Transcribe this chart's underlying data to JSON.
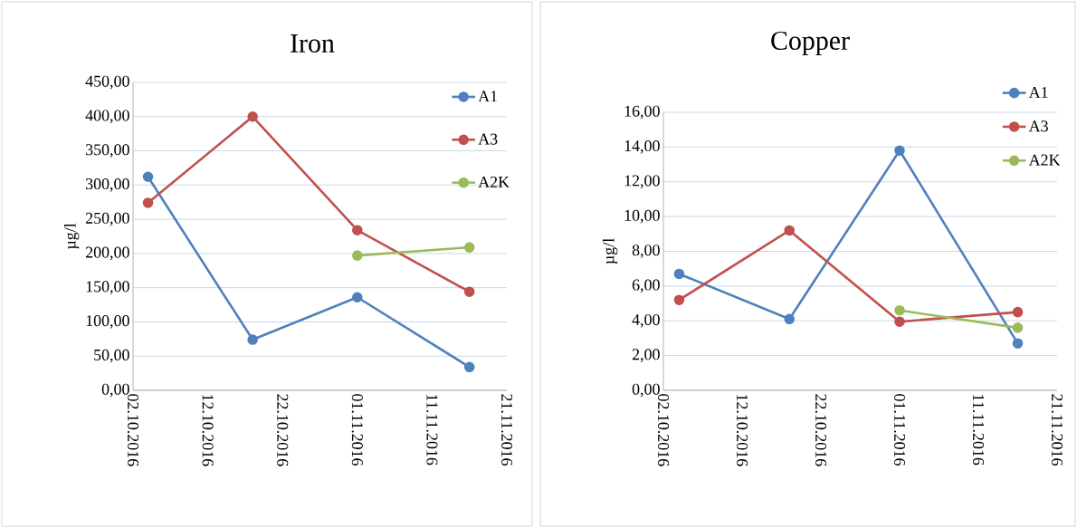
{
  "chart_data": [
    {
      "type": "line",
      "title": "Iron",
      "ylabel": "µg/l",
      "x": [
        "2016-10-04",
        "2016-10-18",
        "2016-11-01",
        "2016-11-16"
      ],
      "series": [
        {
          "name": "A1",
          "color": "#4f81bd",
          "values": [
            312,
            74,
            136,
            34
          ]
        },
        {
          "name": "A3",
          "color": "#c0504d",
          "values": [
            274,
            400,
            234,
            144
          ]
        },
        {
          "name": "A2K",
          "color": "#9bbb59",
          "values": [
            null,
            null,
            197,
            209
          ]
        }
      ],
      "xlim": [
        "2016-10-02",
        "2016-11-21"
      ],
      "xticks": [
        {
          "value": "2016-10-02",
          "label": "02.10.2016"
        },
        {
          "value": "2016-10-12",
          "label": "12.10.2016"
        },
        {
          "value": "2016-10-22",
          "label": "22.10.2016"
        },
        {
          "value": "2016-11-01",
          "label": "01.11.2016"
        },
        {
          "value": "2016-11-11",
          "label": "11.11.2016"
        },
        {
          "value": "2016-11-21",
          "label": "21.11.2016"
        }
      ],
      "ylim": [
        0,
        450
      ],
      "yticks": [
        {
          "value": 0,
          "label": "0,00"
        },
        {
          "value": 50,
          "label": "50,00"
        },
        {
          "value": 100,
          "label": "100,00"
        },
        {
          "value": 150,
          "label": "150,00"
        },
        {
          "value": 200,
          "label": "200,00"
        },
        {
          "value": 250,
          "label": "250,00"
        },
        {
          "value": 300,
          "label": "300,00"
        },
        {
          "value": 350,
          "label": "350,00"
        },
        {
          "value": 400,
          "label": "400,00"
        },
        {
          "value": 450,
          "label": "450,00"
        }
      ],
      "grid": "y",
      "legend": "top right",
      "marker": "circle",
      "line_style": "solid"
    },
    {
      "type": "line",
      "title": "Copper",
      "ylabel": "µg/l",
      "x": [
        "2016-10-04",
        "2016-10-18",
        "2016-11-01",
        "2016-11-16"
      ],
      "series": [
        {
          "name": "A1",
          "color": "#4f81bd",
          "values": [
            6.7,
            4.1,
            13.8,
            2.7
          ]
        },
        {
          "name": "A3",
          "color": "#c0504d",
          "values": [
            5.2,
            9.2,
            3.95,
            4.5
          ]
        },
        {
          "name": "A2K",
          "color": "#9bbb59",
          "values": [
            null,
            null,
            4.6,
            3.6
          ]
        }
      ],
      "xlim": [
        "2016-10-02",
        "2016-11-21"
      ],
      "xticks": [
        {
          "value": "2016-10-02",
          "label": "02.10.2016"
        },
        {
          "value": "2016-10-12",
          "label": "12.10.2016"
        },
        {
          "value": "2016-10-22",
          "label": "22.10.2016"
        },
        {
          "value": "2016-11-01",
          "label": "01.11.2016"
        },
        {
          "value": "2016-11-11",
          "label": "11.11.2016"
        },
        {
          "value": "2016-11-21",
          "label": "21.11.2016"
        }
      ],
      "ylim": [
        0,
        16
      ],
      "yticks": [
        {
          "value": 0,
          "label": "0,00"
        },
        {
          "value": 2,
          "label": "2,00"
        },
        {
          "value": 4,
          "label": "4,00"
        },
        {
          "value": 6,
          "label": "6,00"
        },
        {
          "value": 8,
          "label": "8,00"
        },
        {
          "value": 10,
          "label": "10,00"
        },
        {
          "value": 12,
          "label": "12,00"
        },
        {
          "value": 14,
          "label": "14,00"
        },
        {
          "value": 16,
          "label": "16,00"
        }
      ],
      "grid": "y",
      "legend": "top right",
      "marker": "circle",
      "line_style": "solid"
    }
  ]
}
